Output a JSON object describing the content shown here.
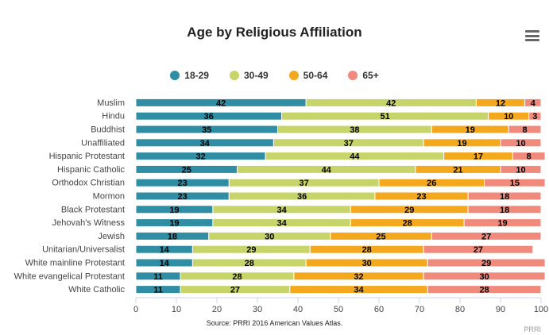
{
  "title": "Age by Religious Affiliation",
  "source": "Source: PRRI 2016 American Values Atlas.",
  "credits": "PRRI",
  "colors": {
    "18-29": "#2f8ea4",
    "30-49": "#c6d46a",
    "50-64": "#f4a81d",
    "65+": "#f08a7c"
  },
  "chart_data": {
    "type": "bar",
    "orientation": "horizontal",
    "stacked": true,
    "title": "Age by Religious Affiliation",
    "xlim": [
      0,
      100
    ],
    "x_ticks": [
      0,
      10,
      20,
      30,
      40,
      50,
      60,
      70,
      80,
      90,
      100
    ],
    "grid": false,
    "legend_position": "top-center",
    "categories": [
      "Muslim",
      "Hindu",
      "Buddhist",
      "Unaffiliated",
      "Hispanic Protestant",
      "Hispanic Catholic",
      "Orthodox Christian",
      "Mormon",
      "Black Protestant",
      "Jehovah's Witness",
      "Jewish",
      "Unitarian/Universalist",
      "White mainline Protestant",
      "White evangelical Protestant",
      "White Catholic"
    ],
    "series": [
      {
        "name": "18-29",
        "color": "#2f8ea4",
        "values": [
          42,
          36,
          35,
          34,
          32,
          25,
          23,
          23,
          19,
          19,
          18,
          14,
          14,
          11,
          11
        ]
      },
      {
        "name": "30-49",
        "color": "#c6d46a",
        "values": [
          42,
          51,
          38,
          37,
          44,
          44,
          37,
          36,
          34,
          34,
          30,
          29,
          28,
          28,
          27
        ]
      },
      {
        "name": "50-64",
        "color": "#f4a81d",
        "values": [
          12,
          10,
          19,
          19,
          17,
          21,
          26,
          23,
          29,
          28,
          25,
          28,
          30,
          32,
          34
        ]
      },
      {
        "name": "65+",
        "color": "#f08a7c",
        "values": [
          4,
          3,
          8,
          10,
          8,
          10,
          15,
          18,
          18,
          19,
          27,
          27,
          29,
          30,
          28
        ]
      }
    ]
  }
}
